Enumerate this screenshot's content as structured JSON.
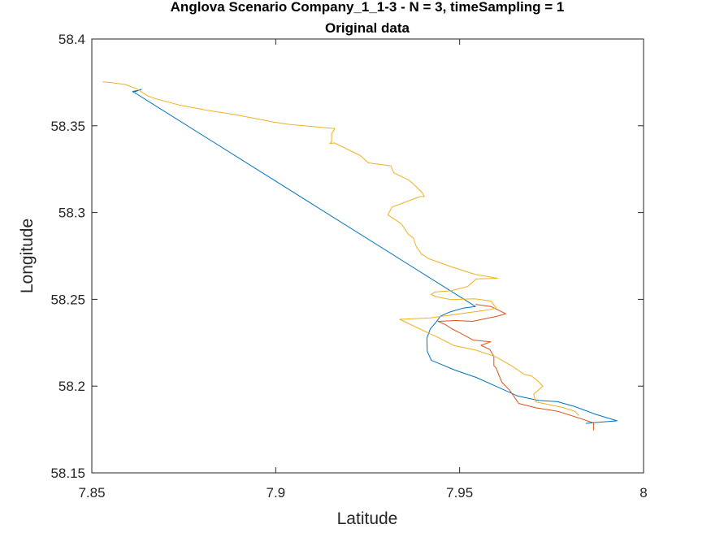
{
  "chart_data": {
    "type": "line",
    "title": [
      "Anglova Scenario Company_1_1-3 - N = 3, timeSampling = 1",
      "Original data"
    ],
    "xlabel": "Latitude",
    "ylabel": "Longitude",
    "xlim": [
      7.85,
      8.0
    ],
    "ylim": [
      58.15,
      58.4
    ],
    "xticks": [
      7.85,
      7.9,
      7.95,
      8.0
    ],
    "xtick_labels": [
      "7.85",
      "7.9",
      "7.95",
      "8"
    ],
    "yticks": [
      58.15,
      58.2,
      58.25,
      58.3,
      58.35,
      58.4
    ],
    "ytick_labels": [
      "58.15",
      "58.2",
      "58.25",
      "58.3",
      "58.35",
      "58.4"
    ],
    "grid": false,
    "legend": "none",
    "series": [
      {
        "color": "#0072BD",
        "x": [
          7.8612,
          7.8635,
          7.8625,
          7.8611,
          7.9543,
          7.9509,
          7.9471,
          7.9448,
          7.9436,
          7.942,
          7.9411,
          7.9412,
          7.9423,
          7.9441,
          7.9487,
          7.9545,
          7.9596,
          7.9658,
          7.9713,
          7.9766,
          7.9813,
          7.987,
          7.9928,
          7.9863,
          7.9843
        ],
        "y": [
          58.3692,
          58.371,
          58.3703,
          58.3698,
          58.2459,
          58.2449,
          58.2425,
          58.2403,
          58.2369,
          58.2329,
          58.2276,
          58.2201,
          58.2149,
          58.2133,
          58.2092,
          58.205,
          58.2002,
          58.1943,
          58.1918,
          58.191,
          58.1882,
          58.1837,
          58.18,
          58.1789,
          58.1785
        ]
      },
      {
        "color": "#D95319",
        "x": [
          7.9543,
          7.9585,
          7.9625,
          7.9605,
          7.9535,
          7.949,
          7.9441,
          7.9461,
          7.9478,
          7.9501,
          7.9537,
          7.9585,
          7.9558,
          7.9582,
          7.9593,
          7.9593,
          7.9599,
          7.9606,
          7.9615,
          7.9636,
          7.9661,
          7.9707,
          7.9767,
          7.9826,
          7.9864,
          7.9864
        ],
        "y": [
          58.2471,
          58.2459,
          58.2417,
          58.2404,
          58.2373,
          58.2378,
          58.2373,
          58.2355,
          58.2331,
          58.2306,
          58.2265,
          58.2255,
          58.2235,
          58.2211,
          58.217,
          58.2117,
          58.2105,
          58.2068,
          58.2022,
          58.1976,
          58.19,
          58.1875,
          58.1855,
          58.1815,
          58.1788,
          58.1745
        ]
      },
      {
        "color": "#EDB120",
        "x": [
          7.853,
          7.8546,
          7.8591,
          7.8622,
          7.8652,
          7.8675,
          7.8737,
          7.8812,
          7.889,
          7.8993,
          7.9037,
          7.9161,
          7.9152,
          7.9152,
          7.9147,
          7.916,
          7.923,
          7.9252,
          7.9313,
          7.9321,
          7.9362,
          7.938,
          7.9399,
          7.9404,
          7.9393,
          7.9381,
          7.9316,
          7.9305,
          7.9341,
          7.9361,
          7.9374,
          7.9382,
          7.9398,
          7.94,
          7.9416,
          7.9473,
          7.9526,
          7.9544,
          7.9581,
          7.9603,
          7.9545,
          7.9522,
          7.9476,
          7.9433,
          7.9422,
          7.9435,
          7.9476,
          7.9541,
          7.9585,
          7.9599,
          7.958,
          7.9421,
          7.9337,
          7.9426,
          7.9436,
          7.9484,
          7.9545,
          7.9599,
          7.9643,
          7.9675,
          7.9695,
          7.9712,
          7.9726,
          7.9701,
          7.9707,
          7.978,
          7.9814,
          7.9824
        ],
        "y": [
          58.3753,
          58.3751,
          58.3738,
          58.3713,
          58.3672,
          58.3655,
          58.362,
          58.359,
          58.3564,
          58.3522,
          58.3508,
          58.3484,
          58.3453,
          58.3409,
          58.3398,
          58.3401,
          58.3328,
          58.3286,
          58.3269,
          58.3229,
          58.3187,
          58.3153,
          58.3113,
          58.3092,
          58.3092,
          58.3083,
          58.3032,
          58.2987,
          58.2936,
          58.2874,
          58.2853,
          58.2804,
          58.2756,
          58.2757,
          58.2734,
          58.2691,
          58.2654,
          58.2643,
          58.263,
          58.2621,
          58.2618,
          58.2574,
          58.2549,
          58.2542,
          58.2528,
          58.2516,
          58.2498,
          58.2503,
          58.249,
          58.245,
          58.244,
          58.2393,
          58.2385,
          58.2295,
          58.2286,
          58.2234,
          58.2207,
          58.2168,
          58.2114,
          58.2068,
          58.2059,
          58.2031,
          58.1999,
          58.1953,
          58.1909,
          58.1877,
          58.1854,
          58.183
        ]
      }
    ]
  }
}
